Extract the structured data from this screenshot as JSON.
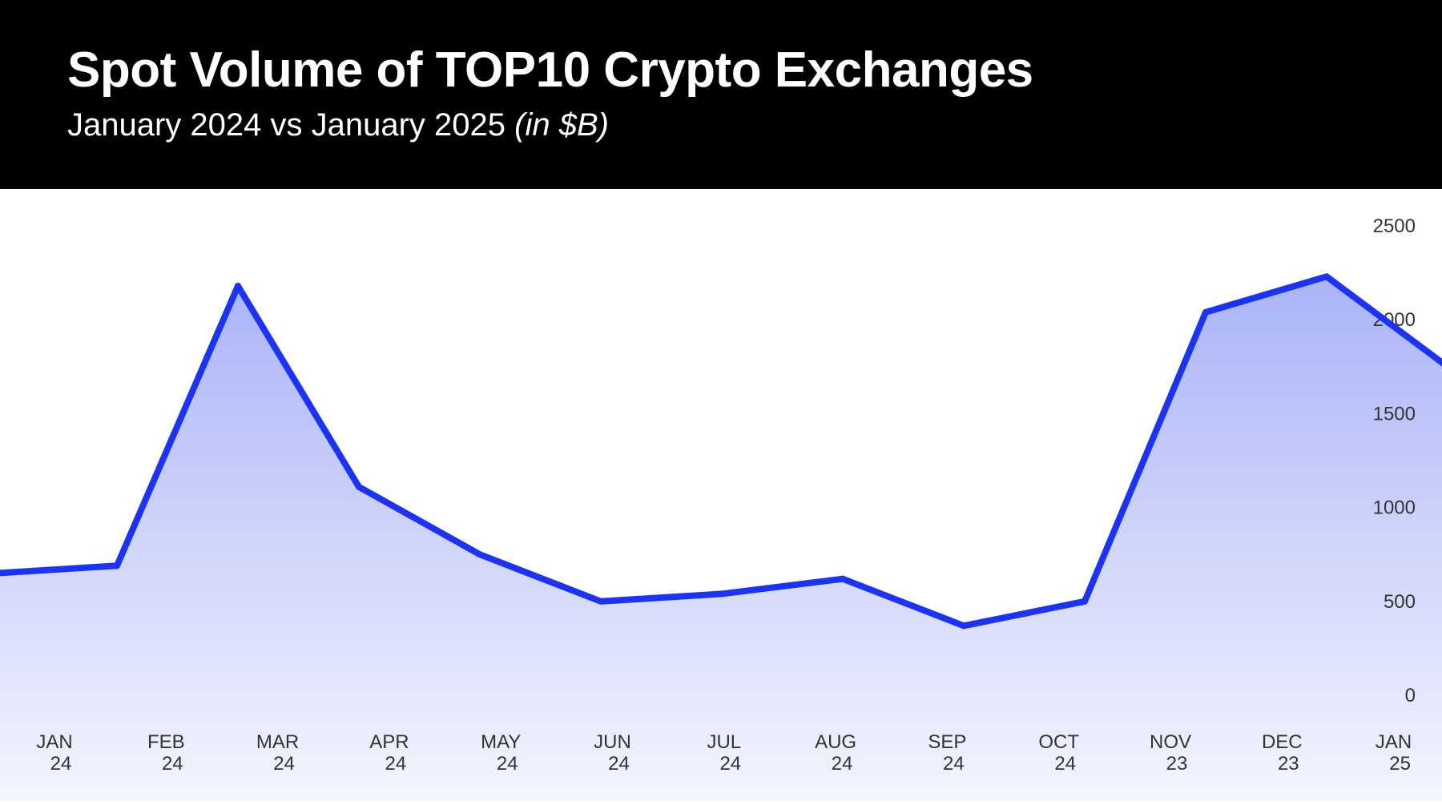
{
  "header": {
    "title": "Spot Volume of TOP10 Crypto Exchanges",
    "subtitle_main": "January 2024 vs January 2025",
    "subtitle_unit": "(in $B)"
  },
  "colors": {
    "header_background": "#000000",
    "header_text": "#ffffff",
    "line": "#1a33f5",
    "fill_top": "#aab4f7",
    "fill_bottom": "#f4f5fe",
    "tick_text": "#333333"
  },
  "chart_data": {
    "type": "area",
    "title": "Spot Volume of TOP10 Crypto Exchanges",
    "subtitle": "January 2024 vs January 2025 (in $B)",
    "categories": [
      [
        "JAN",
        "24"
      ],
      [
        "FEB",
        "24"
      ],
      [
        "MAR",
        "24"
      ],
      [
        "APR",
        "24"
      ],
      [
        "MAY",
        "24"
      ],
      [
        "JUN",
        "24"
      ],
      [
        "JUL",
        "24"
      ],
      [
        "AUG",
        "24"
      ],
      [
        "SEP",
        "24"
      ],
      [
        "OCT",
        "24"
      ],
      [
        "NOV",
        "23"
      ],
      [
        "DEC",
        "23"
      ],
      [
        "JAN",
        "25"
      ]
    ],
    "series": [
      {
        "values": [
          650,
          690,
          2180,
          1110,
          750,
          500,
          540,
          620,
          370,
          500,
          2040,
          2230,
          1750
        ]
      }
    ],
    "y_ticks": [
      "2500",
      "2000",
      "1500",
      "1000",
      "500",
      "0"
    ],
    "ylim": [
      0,
      2500
    ],
    "y_axis_position": "right",
    "grid": false,
    "legend": false
  }
}
